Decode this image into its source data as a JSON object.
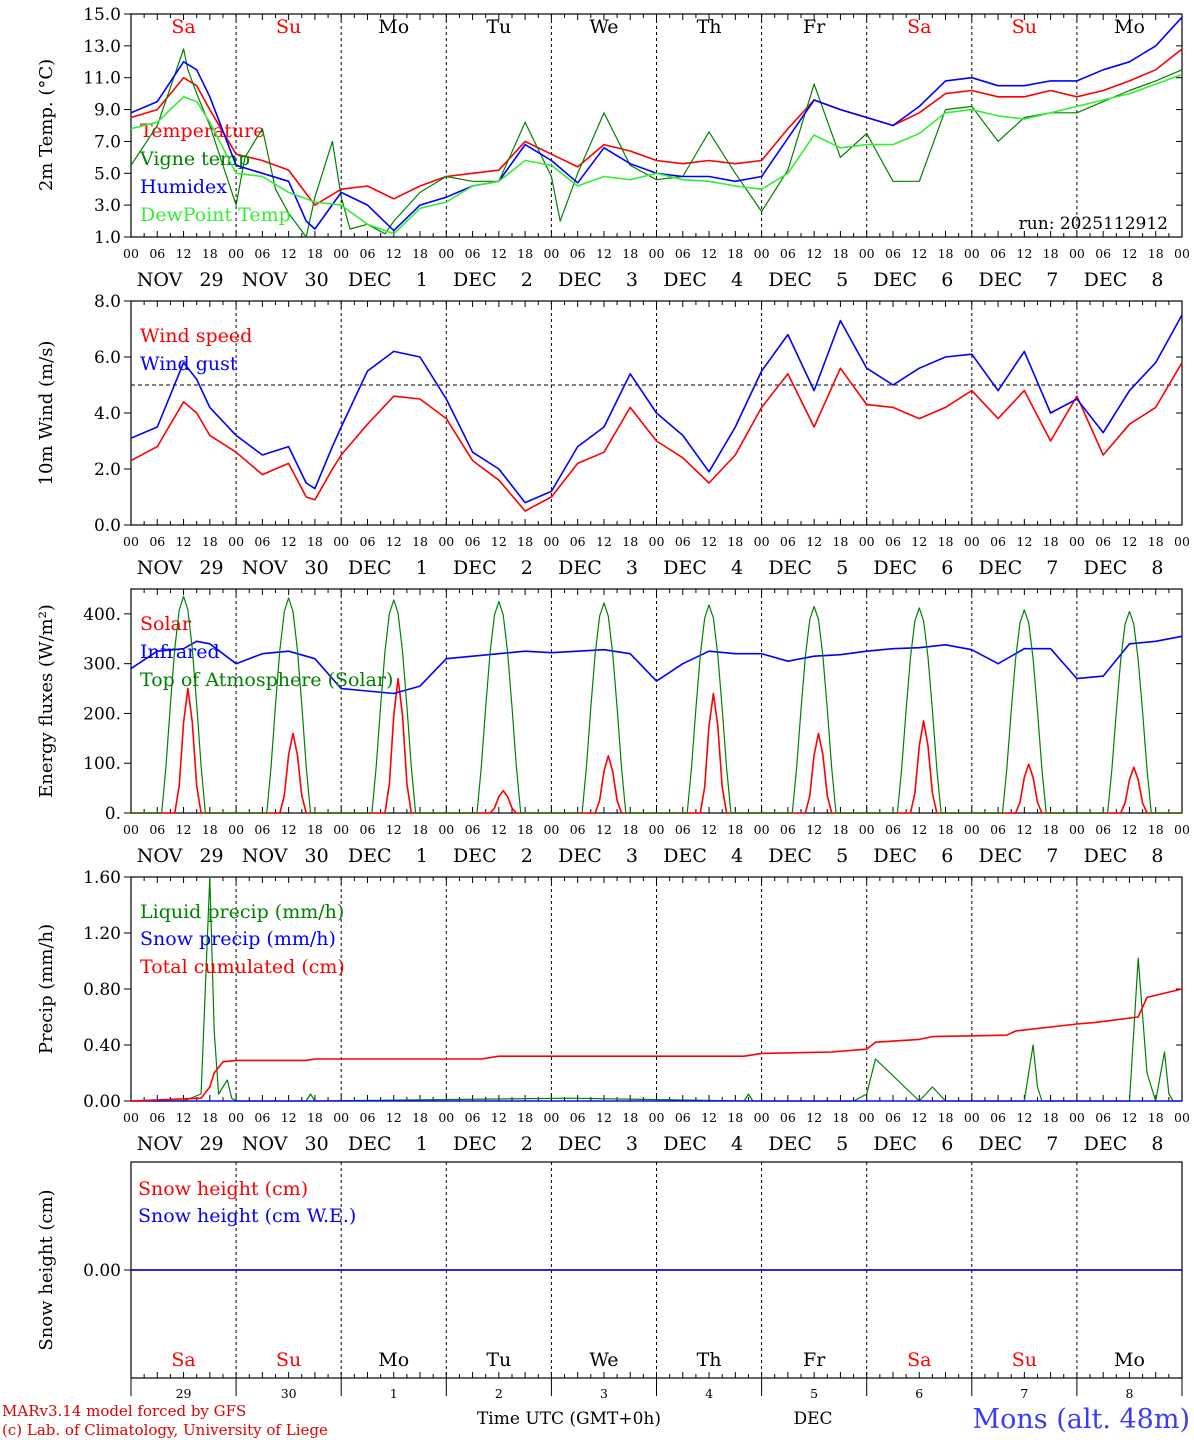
{
  "days": [
    "29",
    "30",
    "1",
    "2",
    "3",
    "4",
    "5",
    "6",
    "7",
    "8"
  ],
  "weekdays": [
    "Sa",
    "Su",
    "Mo",
    "Tu",
    "We",
    "Th",
    "Fr",
    "Sa",
    "Su",
    "Mo"
  ],
  "weekday_colors": [
    "#ff0000",
    "#ff0000",
    "#000000",
    "#000000",
    "#000000",
    "#000000",
    "#000000",
    "#ff0000",
    "#ff0000",
    "#000000"
  ],
  "date_labels": [
    {
      "m": "NOV",
      "d": "29"
    },
    {
      "m": "NOV",
      "d": "30"
    },
    {
      "m": "DEC",
      "d": "1"
    },
    {
      "m": "DEC",
      "d": "2"
    },
    {
      "m": "DEC",
      "d": "3"
    },
    {
      "m": "DEC",
      "d": "4"
    },
    {
      "m": "DEC",
      "d": "5"
    },
    {
      "m": "DEC",
      "d": "6"
    },
    {
      "m": "DEC",
      "d": "7"
    },
    {
      "m": "DEC",
      "d": "8"
    }
  ],
  "hour_labels": [
    "00",
    "06",
    "12",
    "18"
  ],
  "final_hour_label": "00",
  "run_label": "run: 2025112912",
  "x_axis_title": "Time UTC (GMT+0h)",
  "x_axis_month": "DEC",
  "station": "Mons (alt. 48m)",
  "credit_line1": "MARv3.14 model forced by GFS",
  "credit_line2": "(c) Lab. of Climatology, University of Liege",
  "chart_data": [
    {
      "type": "line",
      "title": "2m Temp.",
      "ylabel": "2m Temp. (°C)",
      "ylim": [
        1.0,
        15.0
      ],
      "yticks": [
        "1.0",
        "3.0",
        "5.0",
        "7.0",
        "9.0",
        "11.0",
        "13.0",
        "15.0"
      ],
      "x_unit": "hours since Nov 29 00 UTC",
      "series": [
        {
          "name": "Temperature",
          "color": "#ff0000",
          "x": [
            0,
            6,
            12,
            15,
            18,
            24,
            30,
            36,
            42,
            48,
            54,
            60,
            66,
            72,
            78,
            84,
            90,
            96,
            102,
            108,
            114,
            120,
            126,
            132,
            138,
            144,
            150,
            156,
            162,
            168,
            174,
            180,
            186,
            192,
            198,
            204,
            210,
            216,
            222,
            228,
            234,
            240
          ],
          "y": [
            8.5,
            9.0,
            11.0,
            10.5,
            9.0,
            6.2,
            5.8,
            5.2,
            3.0,
            4.0,
            4.2,
            3.4,
            4.2,
            4.8,
            5.0,
            5.2,
            7.0,
            6.2,
            5.4,
            6.8,
            6.4,
            5.8,
            5.6,
            5.8,
            5.6,
            5.8,
            7.8,
            9.6,
            9.0,
            8.5,
            8.0,
            8.8,
            10.0,
            10.2,
            9.8,
            9.8,
            10.2,
            9.8,
            10.2,
            10.8,
            11.5,
            12.8
          ]
        },
        {
          "name": "Vigne temp",
          "color": "#008000",
          "x": [
            0,
            6,
            12,
            13,
            15,
            18,
            24,
            26,
            30,
            33,
            36,
            40,
            42,
            46,
            48,
            50,
            54,
            58,
            60,
            66,
            72,
            78,
            84,
            90,
            96,
            98,
            102,
            108,
            114,
            120,
            126,
            132,
            138,
            144,
            150,
            156,
            162,
            168,
            174,
            180,
            186,
            192,
            198,
            204,
            210,
            216,
            222,
            228,
            234,
            240
          ],
          "y": [
            5.5,
            8.0,
            12.8,
            11.5,
            10.0,
            8.0,
            3.0,
            6.0,
            7.8,
            4.0,
            2.5,
            1.0,
            3.5,
            7.0,
            3.5,
            1.5,
            1.8,
            1.2,
            2.0,
            3.8,
            4.8,
            4.5,
            4.5,
            8.2,
            4.8,
            2.0,
            5.0,
            8.8,
            5.5,
            4.6,
            4.8,
            7.6,
            5.0,
            2.6,
            5.2,
            10.6,
            6.0,
            7.5,
            4.5,
            4.5,
            9.0,
            9.2,
            7.0,
            8.5,
            8.8,
            8.8,
            9.5,
            10.2,
            10.8,
            11.5
          ]
        },
        {
          "name": "Humidex",
          "color": "#0000ff",
          "x": [
            0,
            6,
            12,
            15,
            18,
            24,
            30,
            36,
            40,
            42,
            48,
            54,
            60,
            66,
            72,
            78,
            84,
            90,
            96,
            102,
            108,
            114,
            120,
            126,
            132,
            138,
            144,
            150,
            156,
            162,
            168,
            174,
            180,
            186,
            192,
            198,
            204,
            210,
            216,
            222,
            228,
            234,
            240
          ],
          "y": [
            8.8,
            9.5,
            12.0,
            11.5,
            9.8,
            5.5,
            5.0,
            4.5,
            2.0,
            1.5,
            3.8,
            3.0,
            1.4,
            3.0,
            3.5,
            4.2,
            4.5,
            6.8,
            5.8,
            4.4,
            6.6,
            5.6,
            5.0,
            4.8,
            4.8,
            4.5,
            4.8,
            7.2,
            9.6,
            9.0,
            8.5,
            8.0,
            9.2,
            10.8,
            11.0,
            10.5,
            10.5,
            10.8,
            10.8,
            11.5,
            12.0,
            13.0,
            14.8
          ]
        },
        {
          "name": "DewPoint Temp",
          "color": "#33ee33",
          "x": [
            0,
            6,
            12,
            15,
            18,
            24,
            30,
            36,
            42,
            48,
            54,
            60,
            66,
            72,
            78,
            84,
            90,
            96,
            102,
            108,
            114,
            120,
            126,
            132,
            138,
            144,
            150,
            156,
            162,
            168,
            174,
            180,
            186,
            192,
            198,
            204,
            210,
            216,
            222,
            228,
            234,
            240
          ],
          "y": [
            7.8,
            8.2,
            9.8,
            9.5,
            8.2,
            5.0,
            4.8,
            3.8,
            3.2,
            3.0,
            1.8,
            1.2,
            2.8,
            3.2,
            4.2,
            4.5,
            5.8,
            5.5,
            4.2,
            4.8,
            4.6,
            5.0,
            4.6,
            4.5,
            4.2,
            4.0,
            5.0,
            7.4,
            6.6,
            6.8,
            6.8,
            7.5,
            8.8,
            9.0,
            8.6,
            8.4,
            8.8,
            9.2,
            9.6,
            10.0,
            10.6,
            11.2
          ]
        }
      ]
    },
    {
      "type": "line",
      "ylabel": "10m Wind (m/s)",
      "ylim": [
        0.0,
        8.0
      ],
      "yticks": [
        "0.0",
        "2.0",
        "4.0",
        "6.0",
        "8.0"
      ],
      "reference_line": 5.0,
      "series": [
        {
          "name": "Wind speed",
          "color": "#ff0000",
          "x": [
            0,
            6,
            12,
            15,
            18,
            24,
            30,
            36,
            40,
            42,
            46,
            48,
            54,
            60,
            66,
            72,
            78,
            84,
            90,
            96,
            102,
            108,
            114,
            120,
            126,
            132,
            138,
            144,
            150,
            156,
            162,
            168,
            174,
            180,
            186,
            192,
            198,
            204,
            210,
            216,
            222,
            228,
            234,
            240
          ],
          "y": [
            2.3,
            2.8,
            4.4,
            4.0,
            3.2,
            2.6,
            1.8,
            2.2,
            1.0,
            0.9,
            2.0,
            2.5,
            3.6,
            4.6,
            4.5,
            3.8,
            2.3,
            1.6,
            0.5,
            1.0,
            2.2,
            2.6,
            4.2,
            3.0,
            2.4,
            1.5,
            2.5,
            4.2,
            5.4,
            3.5,
            5.6,
            4.3,
            4.2,
            3.8,
            4.2,
            4.8,
            3.8,
            4.8,
            3.0,
            4.6,
            2.5,
            3.6,
            4.2,
            5.8
          ]
        },
        {
          "name": "Wind gust",
          "color": "#0000ff",
          "x": [
            0,
            6,
            12,
            15,
            18,
            24,
            30,
            36,
            40,
            42,
            46,
            48,
            54,
            60,
            66,
            72,
            78,
            84,
            90,
            96,
            102,
            108,
            114,
            120,
            126,
            132,
            138,
            144,
            150,
            156,
            162,
            168,
            174,
            180,
            186,
            192,
            198,
            204,
            210,
            216,
            222,
            228,
            234,
            240
          ],
          "y": [
            3.1,
            3.5,
            5.8,
            5.2,
            4.2,
            3.2,
            2.5,
            2.8,
            1.5,
            1.3,
            2.8,
            3.5,
            5.5,
            6.2,
            6.0,
            4.5,
            2.6,
            2.0,
            0.8,
            1.2,
            2.8,
            3.5,
            5.4,
            4.0,
            3.2,
            1.9,
            3.5,
            5.5,
            6.8,
            4.8,
            7.3,
            5.6,
            5.0,
            5.6,
            6.0,
            6.1,
            4.8,
            6.2,
            4.0,
            4.5,
            3.3,
            4.8,
            5.8,
            7.5
          ]
        }
      ]
    },
    {
      "type": "line",
      "ylabel": "Energy fluxes (W/m²)",
      "ylim": [
        0,
        450
      ],
      "yticks": [
        "0.",
        "100.",
        "200.",
        "300.",
        "400."
      ],
      "series": [
        {
          "name": "Solar",
          "color": "#ff0000",
          "peaks": [
            {
              "x": 13,
              "y": 250
            },
            {
              "x": 37,
              "y": 160
            },
            {
              "x": 61,
              "y": 270
            },
            {
              "x": 85,
              "y": 45
            },
            {
              "x": 109,
              "y": 115
            },
            {
              "x": 133,
              "y": 240
            },
            {
              "x": 157,
              "y": 160
            },
            {
              "x": 181,
              "y": 185
            },
            {
              "x": 205,
              "y": 98
            },
            {
              "x": 229,
              "y": 92
            }
          ]
        },
        {
          "name": "Infrared",
          "color": "#0000ff",
          "x": [
            0,
            6,
            12,
            15,
            18,
            24,
            30,
            36,
            42,
            48,
            54,
            60,
            66,
            72,
            78,
            84,
            90,
            96,
            102,
            108,
            114,
            120,
            126,
            132,
            138,
            144,
            150,
            156,
            162,
            168,
            174,
            180,
            186,
            192,
            198,
            204,
            210,
            216,
            222,
            228,
            234,
            240
          ],
          "y": [
            290,
            325,
            330,
            345,
            340,
            300,
            320,
            325,
            310,
            250,
            245,
            240,
            255,
            310,
            315,
            320,
            325,
            322,
            325,
            328,
            320,
            265,
            300,
            325,
            320,
            320,
            305,
            315,
            318,
            325,
            330,
            332,
            338,
            328,
            300,
            330,
            330,
            270,
            275,
            340,
            345,
            355
          ]
        },
        {
          "name": "Top of Atmosphere (Solar)",
          "color": "#008000",
          "peaks": [
            {
              "x": 12,
              "y": 435
            },
            {
              "x": 36,
              "y": 432
            },
            {
              "x": 60,
              "y": 428
            },
            {
              "x": 84,
              "y": 425
            },
            {
              "x": 108,
              "y": 422
            },
            {
              "x": 132,
              "y": 418
            },
            {
              "x": 156,
              "y": 415
            },
            {
              "x": 180,
              "y": 412
            },
            {
              "x": 204,
              "y": 408
            },
            {
              "x": 228,
              "y": 405
            }
          ]
        }
      ]
    },
    {
      "type": "line",
      "ylabel": "Precip (mm/h)",
      "ylim": [
        0.0,
        1.6
      ],
      "yticks": [
        "0.00",
        "0.40",
        "0.80",
        "1.20",
        "1.60"
      ],
      "series": [
        {
          "name": "Liquid precip (mm/h)",
          "color": "#008000",
          "x": [
            0,
            12,
            16,
            18,
            19,
            20,
            22,
            23,
            24,
            40,
            41,
            42,
            100,
            140,
            141,
            142,
            165,
            168,
            170,
            180,
            183,
            186,
            204,
            206,
            207,
            208,
            228,
            230,
            232,
            233,
            234,
            236,
            237,
            238,
            240
          ],
          "y": [
            0,
            0,
            0.05,
            1.6,
            0.5,
            0.05,
            0.15,
            0.02,
            0,
            0,
            0.05,
            0,
            0.02,
            0,
            0.05,
            0,
            0,
            0.05,
            0.3,
            0,
            0.1,
            0,
            0,
            0.4,
            0.1,
            0,
            0,
            1.02,
            0.2,
            0.1,
            0,
            0.35,
            0.05,
            0,
            0
          ]
        },
        {
          "name": "Snow precip (mm/h)",
          "color": "#0000ff",
          "x": [
            0,
            240
          ],
          "y": [
            0,
            0
          ]
        },
        {
          "name": "Total cumulated (cm)",
          "color": "#ff0000",
          "x": [
            0,
            16,
            18,
            19,
            21,
            24,
            40,
            42,
            80,
            84,
            140,
            144,
            160,
            168,
            170,
            180,
            183,
            200,
            202,
            216,
            220,
            230,
            232,
            240
          ],
          "y": [
            0,
            0.02,
            0.1,
            0.2,
            0.28,
            0.29,
            0.29,
            0.3,
            0.3,
            0.32,
            0.32,
            0.34,
            0.35,
            0.37,
            0.42,
            0.44,
            0.46,
            0.47,
            0.5,
            0.55,
            0.56,
            0.6,
            0.74,
            0.8
          ]
        }
      ]
    },
    {
      "type": "line",
      "ylabel": "Snow height (cm)",
      "ylim": [
        -1,
        1
      ],
      "yticks": [
        "0.00"
      ],
      "series": [
        {
          "name": "Snow height (cm)",
          "color": "#ff0000",
          "x": [
            0,
            240
          ],
          "y": [
            0,
            0
          ]
        },
        {
          "name": "Snow height (cm W.E.)",
          "color": "#0000ff",
          "x": [
            0,
            240
          ],
          "y": [
            0,
            0
          ]
        }
      ]
    }
  ]
}
